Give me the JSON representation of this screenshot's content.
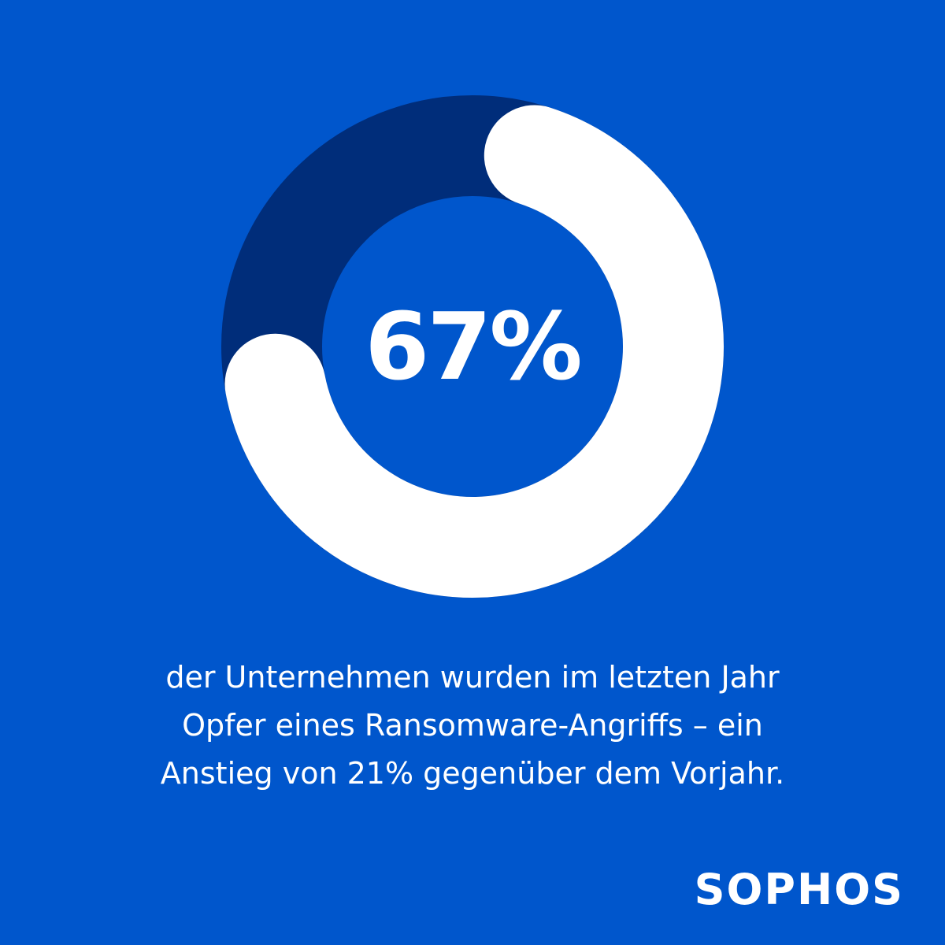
{
  "colors": {
    "background": "#0056cc",
    "ring_track": "#002d7a",
    "ring_value": "#ffffff",
    "text": "#ffffff"
  },
  "chart_data": {
    "type": "pie",
    "variant": "donut",
    "value_label": "67%",
    "slices": [
      {
        "value": 67,
        "color": "#ffffff"
      },
      {
        "value": 33,
        "color": "#002d7a"
      }
    ],
    "percent": 67
  },
  "caption": {
    "lines": [
      "der Unternehmen wurden im letzten Jahr",
      "Opfer eines Ransomware-Angriffs – ein",
      "Anstieg von 21% gegenüber dem Vorjahr."
    ]
  },
  "brand": {
    "name": "SOPHOS"
  }
}
